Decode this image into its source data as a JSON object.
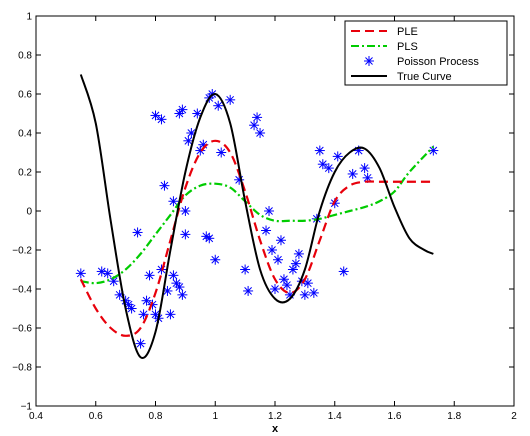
{
  "chart_data": {
    "type": "line",
    "title": "",
    "xlabel": "x",
    "ylabel": "",
    "xlim": [
      0.4,
      2.0
    ],
    "ylim": [
      -1.0,
      1.0
    ],
    "x_ticks": [
      0.4,
      0.6,
      0.8,
      1.0,
      1.2,
      1.4,
      1.6,
      1.8,
      2.0
    ],
    "x_tick_labels": [
      "0.4",
      "0.6",
      "0.8",
      "1",
      "1.2",
      "1.4",
      "1.6",
      "1.8",
      "2"
    ],
    "y_ticks": [
      -1.0,
      -0.8,
      -0.6,
      -0.4,
      -0.2,
      0.0,
      0.2,
      0.4,
      0.6,
      0.8,
      1.0
    ],
    "y_tick_labels": [
      "−1",
      "−0.8",
      "−0.6",
      "−0.4",
      "−0.2",
      "0",
      "0.2",
      "0.4",
      "0.6",
      "0.8",
      "1"
    ],
    "grid": false,
    "legend_position": "top-right",
    "series": [
      {
        "name": "PLE",
        "style": "line",
        "dash": "dashed",
        "color": "#e8000b",
        "x": [
          0.55,
          0.6,
          0.65,
          0.7,
          0.75,
          0.8,
          0.85,
          0.9,
          0.95,
          1.0,
          1.05,
          1.1,
          1.15,
          1.2,
          1.25,
          1.3,
          1.35,
          1.4,
          1.45,
          1.5,
          1.55,
          1.6,
          1.65,
          1.73
        ],
        "y": [
          -0.35,
          -0.5,
          -0.6,
          -0.64,
          -0.6,
          -0.42,
          -0.15,
          0.12,
          0.3,
          0.36,
          0.3,
          0.1,
          -0.15,
          -0.35,
          -0.42,
          -0.35,
          -0.15,
          0.05,
          0.13,
          0.15,
          0.15,
          0.15,
          0.15,
          0.15
        ]
      },
      {
        "name": "PLS",
        "style": "line",
        "dash": "dashdot",
        "color": "#00cc00",
        "x": [
          0.55,
          0.6,
          0.65,
          0.7,
          0.75,
          0.8,
          0.85,
          0.9,
          0.95,
          1.0,
          1.05,
          1.1,
          1.15,
          1.2,
          1.25,
          1.3,
          1.35,
          1.4,
          1.45,
          1.5,
          1.55,
          1.6,
          1.65,
          1.73
        ],
        "y": [
          -0.36,
          -0.37,
          -0.35,
          -0.3,
          -0.22,
          -0.12,
          -0.02,
          0.08,
          0.13,
          0.14,
          0.12,
          0.05,
          -0.02,
          -0.05,
          -0.05,
          -0.05,
          -0.04,
          -0.02,
          0.0,
          0.02,
          0.05,
          0.1,
          0.2,
          0.33
        ]
      },
      {
        "name": "Poisson Process",
        "style": "marker",
        "marker": "asterisk",
        "color": "#0000ff",
        "x": [
          0.55,
          0.62,
          0.64,
          0.66,
          0.68,
          0.7,
          0.71,
          0.72,
          0.74,
          0.75,
          0.76,
          0.77,
          0.78,
          0.79,
          0.8,
          0.8,
          0.81,
          0.82,
          0.82,
          0.83,
          0.84,
          0.85,
          0.86,
          0.86,
          0.87,
          0.88,
          0.88,
          0.89,
          0.89,
          0.9,
          0.9,
          0.91,
          0.92,
          0.94,
          0.95,
          0.96,
          0.97,
          0.98,
          0.98,
          0.99,
          1.0,
          1.01,
          1.02,
          1.05,
          1.08,
          1.1,
          1.11,
          1.13,
          1.14,
          1.15,
          1.17,
          1.18,
          1.19,
          1.2,
          1.21,
          1.22,
          1.23,
          1.24,
          1.25,
          1.26,
          1.27,
          1.28,
          1.29,
          1.3,
          1.31,
          1.33,
          1.34,
          1.35,
          1.36,
          1.38,
          1.4,
          1.41,
          1.43,
          1.46,
          1.48,
          1.5,
          1.51,
          1.73
        ],
        "y": [
          -0.32,
          -0.31,
          -0.32,
          -0.36,
          -0.43,
          -0.46,
          -0.48,
          -0.5,
          -0.11,
          -0.68,
          -0.53,
          -0.46,
          -0.33,
          -0.48,
          -0.53,
          0.49,
          -0.55,
          0.47,
          -0.3,
          0.13,
          -0.41,
          -0.53,
          -0.33,
          0.05,
          -0.37,
          -0.39,
          0.5,
          -0.43,
          0.52,
          -0.12,
          0.0,
          0.36,
          0.4,
          0.5,
          0.31,
          0.34,
          -0.13,
          -0.14,
          0.58,
          0.6,
          -0.25,
          0.54,
          0.3,
          0.57,
          0.16,
          -0.3,
          -0.41,
          0.44,
          0.48,
          0.4,
          -0.1,
          0.0,
          -0.2,
          -0.4,
          -0.25,
          -0.15,
          -0.35,
          -0.38,
          -0.43,
          -0.3,
          -0.27,
          -0.22,
          -0.36,
          -0.43,
          -0.37,
          -0.42,
          -0.04,
          0.31,
          0.24,
          0.22,
          0.04,
          0.28,
          -0.31,
          0.19,
          0.31,
          0.22,
          0.17,
          0.31
        ]
      },
      {
        "name": "True Curve",
        "style": "line",
        "dash": "solid",
        "color": "#000000",
        "x": [
          0.55,
          0.6,
          0.65,
          0.7,
          0.75,
          0.8,
          0.85,
          0.9,
          0.95,
          1.0,
          1.05,
          1.1,
          1.15,
          1.2,
          1.25,
          1.3,
          1.35,
          1.4,
          1.45,
          1.5,
          1.55,
          1.6,
          1.65,
          1.7,
          1.73
        ],
        "y": [
          0.7,
          0.45,
          -0.05,
          -0.5,
          -0.75,
          -0.62,
          -0.2,
          0.2,
          0.48,
          0.6,
          0.45,
          0.05,
          -0.3,
          -0.45,
          -0.45,
          -0.3,
          0.0,
          0.2,
          0.3,
          0.32,
          0.22,
          0.02,
          -0.14,
          -0.2,
          -0.22
        ]
      }
    ]
  }
}
